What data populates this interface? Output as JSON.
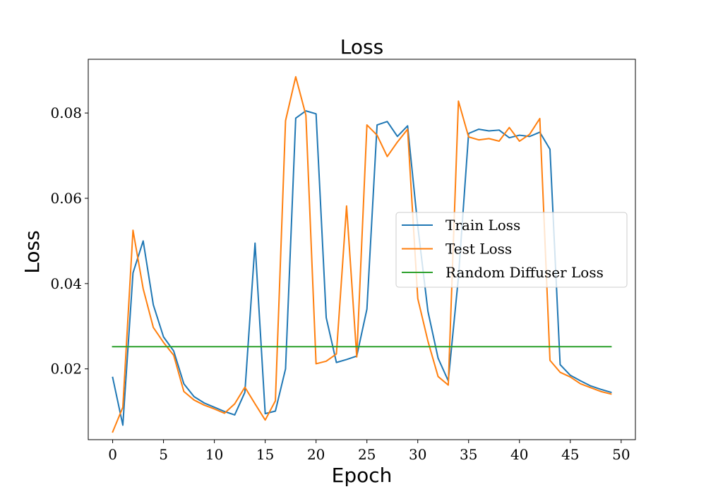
{
  "chart_data": {
    "type": "line",
    "title": "Loss",
    "xlabel": "Epoch",
    "ylabel": "Loss",
    "xlim": [
      -2.4,
      51.4
    ],
    "ylim": [
      0.0034,
      0.0926
    ],
    "xticks": [
      0,
      5,
      10,
      15,
      20,
      25,
      30,
      35,
      40,
      45,
      50
    ],
    "yticks": [
      0.02,
      0.04,
      0.06,
      0.08
    ],
    "ytick_labels": [
      "0.02",
      "0.04",
      "0.06",
      "0.08"
    ],
    "grid": false,
    "legend_position": "center-right",
    "x": [
      0,
      1,
      2,
      3,
      4,
      5,
      6,
      7,
      8,
      9,
      10,
      11,
      12,
      13,
      14,
      15,
      16,
      17,
      18,
      19,
      20,
      21,
      22,
      23,
      24,
      25,
      26,
      27,
      28,
      29,
      30,
      31,
      32,
      33,
      34,
      35,
      36,
      37,
      38,
      39,
      40,
      41,
      42,
      43,
      44,
      45,
      46,
      47,
      48,
      49
    ],
    "series": [
      {
        "name": "Train Loss",
        "color": "#1f77b4",
        "values": [
          0.018,
          0.0068,
          0.0425,
          0.05,
          0.035,
          0.0275,
          0.0242,
          0.0165,
          0.0135,
          0.012,
          0.011,
          0.01,
          0.0092,
          0.0145,
          0.0495,
          0.0095,
          0.0101,
          0.02,
          0.0788,
          0.0805,
          0.0798,
          0.032,
          0.0215,
          0.0222,
          0.023,
          0.034,
          0.0772,
          0.078,
          0.0745,
          0.077,
          0.0535,
          0.0335,
          0.0225,
          0.0172,
          0.0415,
          0.0752,
          0.0762,
          0.0758,
          0.076,
          0.0742,
          0.0748,
          0.0745,
          0.0755,
          0.0715,
          0.021,
          0.0185,
          0.0172,
          0.016,
          0.0152,
          0.0145
        ]
      },
      {
        "name": "Test Loss",
        "color": "#ff7f0e",
        "values": [
          0.0052,
          0.011,
          0.0525,
          0.0388,
          0.0297,
          0.0262,
          0.0232,
          0.0147,
          0.0127,
          0.0115,
          0.0106,
          0.0096,
          0.0118,
          0.0157,
          0.0118,
          0.008,
          0.0125,
          0.0782,
          0.0885,
          0.0795,
          0.0212,
          0.0218,
          0.0235,
          0.0582,
          0.0228,
          0.0772,
          0.0748,
          0.0698,
          0.0732,
          0.0762,
          0.0365,
          0.0265,
          0.0182,
          0.0162,
          0.0828,
          0.0744,
          0.0737,
          0.074,
          0.0734,
          0.0766,
          0.0734,
          0.075,
          0.0787,
          0.022,
          0.0192,
          0.0181,
          0.0165,
          0.0156,
          0.0147,
          0.0141
        ]
      },
      {
        "name": "Random Diffuser Loss",
        "color": "#2ca02c",
        "values": [
          0.0252,
          0.0252,
          0.0252,
          0.0252,
          0.0252,
          0.0252,
          0.0252,
          0.0252,
          0.0252,
          0.0252,
          0.0252,
          0.0252,
          0.0252,
          0.0252,
          0.0252,
          0.0252,
          0.0252,
          0.0252,
          0.0252,
          0.0252,
          0.0252,
          0.0252,
          0.0252,
          0.0252,
          0.0252,
          0.0252,
          0.0252,
          0.0252,
          0.0252,
          0.0252,
          0.0252,
          0.0252,
          0.0252,
          0.0252,
          0.0252,
          0.0252,
          0.0252,
          0.0252,
          0.0252,
          0.0252,
          0.0252,
          0.0252,
          0.0252,
          0.0252,
          0.0252,
          0.0252,
          0.0252,
          0.0252,
          0.0252,
          0.0252
        ]
      }
    ]
  }
}
